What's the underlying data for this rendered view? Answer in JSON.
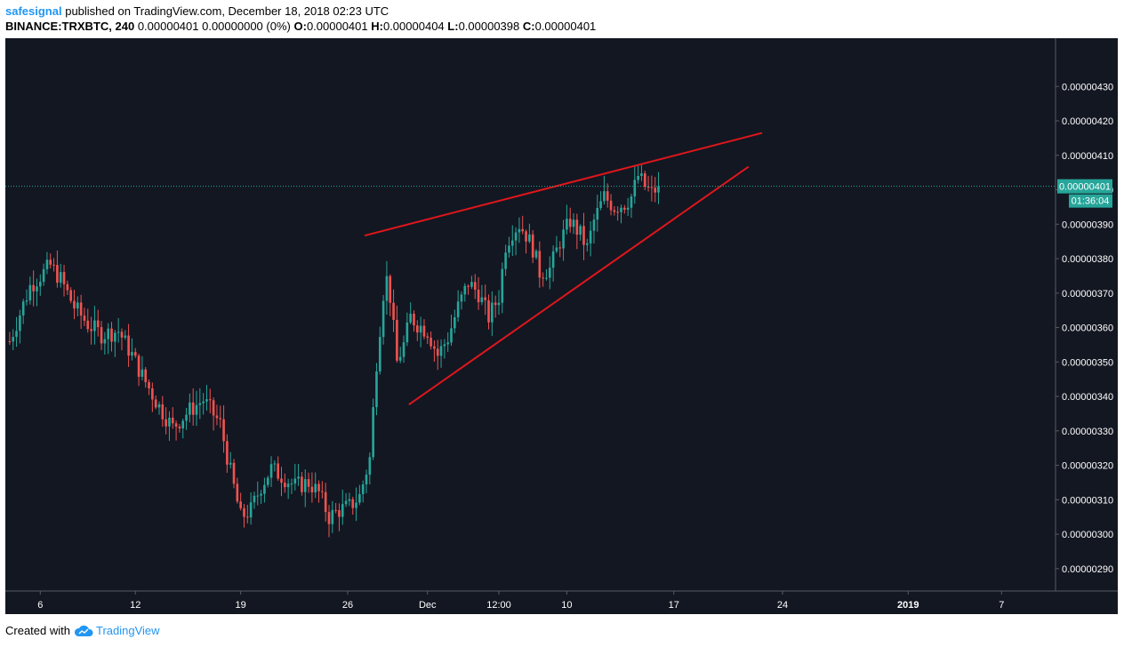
{
  "header": {
    "user": "safesignal",
    "published": "published on TradingView.com, December 18, 2018 02:23 UTC",
    "symbol": "BINANCE:TRXBTC, 240",
    "change": "0.00000401 0.00000000 (0%)",
    "o_label": "O:",
    "o_value": "0.00000401",
    "h_label": "H:",
    "h_value": "0.00000404",
    "l_label": "L:",
    "l_value": "0.00000398",
    "c_label": "C:",
    "c_value": "0.00000401"
  },
  "footer": {
    "created_with": "Created with",
    "brand": "TradingView",
    "brand_icon": "tradingview-cloud-icon"
  },
  "colors": {
    "background": "#131722",
    "up": "#26a69a",
    "down": "#ef5350",
    "trendline": "#e0161b",
    "last_price": "#26a69a",
    "axis_text": "#ffffff",
    "grid": "#2a2e39"
  },
  "chart_data": {
    "type": "candlestick",
    "symbol": "BINANCE:TRXBTC",
    "interval": "240",
    "x_ticks": [
      "6",
      "12",
      "19",
      "26",
      "Dec",
      "12:00",
      "10",
      "17",
      "24",
      "2019",
      "7"
    ],
    "y_ticks": [
      "0.00000430",
      "0.00000420",
      "0.00000410",
      "0.00000400",
      "0.00000390",
      "0.00000380",
      "0.00000370",
      "0.00000360",
      "0.00000350",
      "0.00000340",
      "0.00000330",
      "0.00000320",
      "0.00000310",
      "0.00000300",
      "0.00000290"
    ],
    "ylim": [
      2.835e-06,
      4.44e-06
    ],
    "last_price": "0.00000401",
    "countdown": "01:36:04",
    "price_path": [
      [
        0,
        3.56e-06
      ],
      [
        6,
        3.72e-06
      ],
      [
        12,
        3.78e-06
      ],
      [
        15,
        3.74e-06
      ],
      [
        19,
        3.66e-06
      ],
      [
        23,
        3.61e-06
      ],
      [
        27,
        3.58e-06
      ],
      [
        32,
        3.59e-06
      ],
      [
        36,
        3.52e-06
      ],
      [
        39,
        3.46e-06
      ],
      [
        44,
        3.37e-06
      ],
      [
        48,
        3.31e-06
      ],
      [
        53,
        3.36e-06
      ],
      [
        57,
        3.39e-06
      ],
      [
        62,
        3.32e-06
      ],
      [
        65,
        3.18e-06
      ],
      [
        68,
        3.05e-06
      ],
      [
        71,
        3.07e-06
      ],
      [
        74,
        3.14e-06
      ],
      [
        77,
        3.19e-06
      ],
      [
        80,
        3.17e-06
      ],
      [
        84,
        3.14e-06
      ],
      [
        88,
        3.15e-06
      ],
      [
        91,
        3.12e-06
      ],
      [
        94,
        3.05e-06
      ],
      [
        97,
        3.07e-06
      ],
      [
        100,
        3.08e-06
      ],
      [
        103,
        3.11e-06
      ],
      [
        106,
        3.22e-06
      ],
      [
        108,
        3.5e-06
      ],
      [
        110,
        3.7e-06
      ],
      [
        111,
        3.74e-06
      ],
      [
        112,
        3.69e-06
      ],
      [
        114,
        3.5e-06
      ],
      [
        116,
        3.55e-06
      ],
      [
        118,
        3.63e-06
      ],
      [
        120,
        3.61e-06
      ],
      [
        123,
        3.59e-06
      ],
      [
        126,
        3.52e-06
      ],
      [
        129,
        3.57e-06
      ],
      [
        132,
        3.66e-06
      ],
      [
        135,
        3.73e-06
      ],
      [
        138,
        3.7e-06
      ],
      [
        141,
        3.63e-06
      ],
      [
        144,
        3.69e-06
      ],
      [
        146,
        3.84e-06
      ],
      [
        148,
        3.88e-06
      ],
      [
        150,
        3.9e-06
      ],
      [
        152,
        3.87e-06
      ],
      [
        154,
        3.83e-06
      ],
      [
        156,
        3.76e-06
      ],
      [
        159,
        3.77e-06
      ],
      [
        162,
        3.85e-06
      ],
      [
        165,
        3.91e-06
      ],
      [
        168,
        3.87e-06
      ],
      [
        170,
        3.83e-06
      ],
      [
        172,
        3.91e-06
      ],
      [
        175,
        3.98e-06
      ],
      [
        178,
        3.95e-06
      ],
      [
        181,
        3.96e-06
      ],
      [
        183,
        3.98e-06
      ],
      [
        185,
        4.04e-06
      ],
      [
        187,
        4.01e-06
      ],
      [
        189,
        3.99e-06
      ],
      [
        191,
        4.01e-06
      ]
    ],
    "trendlines": [
      {
        "from": {
          "x": 105,
          "y": 3.867e-06
        },
        "to": {
          "x": 222,
          "y": 4.165e-06
        }
      },
      {
        "from": {
          "x": 118,
          "y": 3.376e-06
        },
        "to": {
          "x": 218,
          "y": 4.067e-06
        }
      }
    ]
  }
}
